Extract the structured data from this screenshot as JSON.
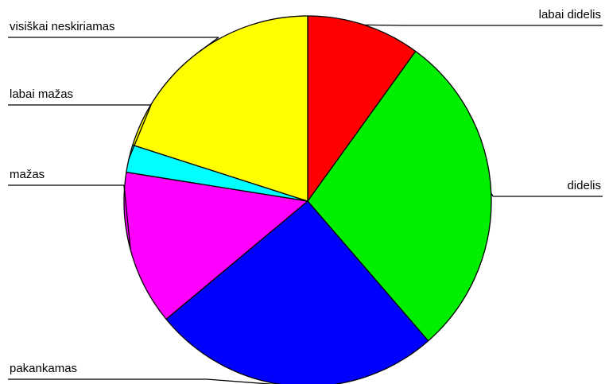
{
  "chart_data": {
    "type": "pie",
    "start_angle_deg": 0,
    "direction": "clockwise",
    "legend": "none",
    "slices": [
      {
        "label": "labai didelis",
        "value": 10.0,
        "color": "#ff0000"
      },
      {
        "label": "didelis",
        "value": 28.6,
        "color": "#00ee00"
      },
      {
        "label": "pakankamas",
        "value": 25.4,
        "color": "#0000ff"
      },
      {
        "label": "mažas",
        "value": 13.5,
        "color": "#ff00ff"
      },
      {
        "label": "labai mažas",
        "value": 2.4,
        "color": "#00ffff"
      },
      {
        "label": "visiškai neskiriamas",
        "value": 20.1,
        "color": "#ffff00"
      }
    ]
  }
}
